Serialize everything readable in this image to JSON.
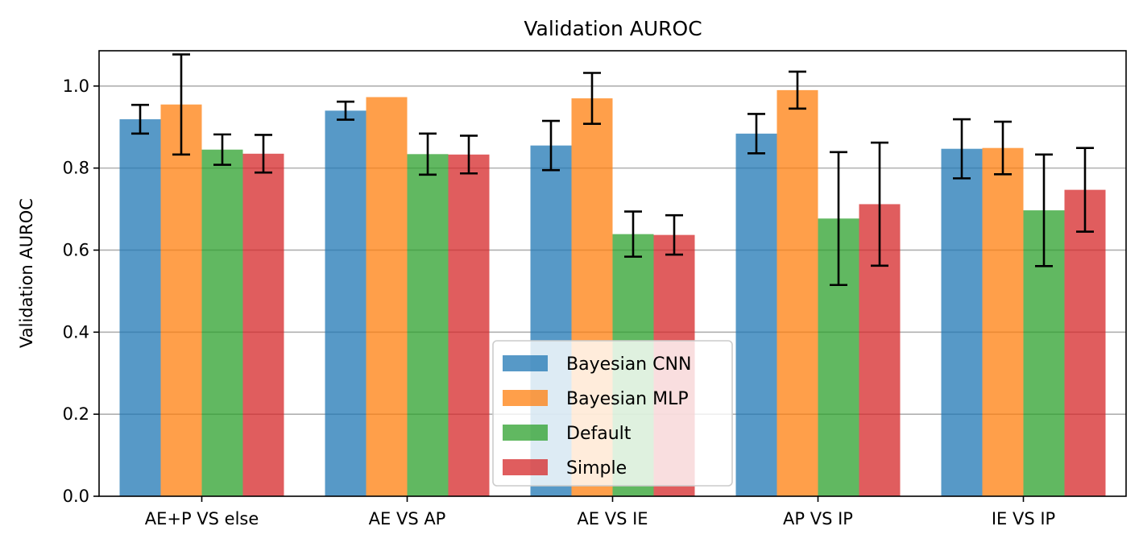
{
  "chart_data": {
    "type": "bar",
    "title": "Validation AUROC",
    "xlabel": "",
    "ylabel": "Validation AUROC",
    "ylim": [
      0,
      1.086
    ],
    "yticks": [
      "0.0",
      "0.2",
      "0.4",
      "0.6",
      "0.8",
      "1.0"
    ],
    "grid": "horizontal",
    "legend_position": "lower center",
    "categories": [
      "AE+P VS else",
      "AE VS AP",
      "AE VS IE",
      "AP VS IP",
      "IE VS IP"
    ],
    "series": [
      {
        "name": "Bayesian CNN",
        "color": "#1f77b4",
        "values": [
          0.919,
          0.94,
          0.855,
          0.884,
          0.847
        ],
        "errors": [
          0.035,
          0.022,
          0.06,
          0.048,
          0.072
        ]
      },
      {
        "name": "Bayesian MLP",
        "color": "#ff7f0e",
        "values": [
          0.955,
          0.973,
          0.97,
          0.99,
          0.849
        ],
        "errors": [
          0.122,
          0.0,
          0.062,
          0.045,
          0.064
        ]
      },
      {
        "name": "Default",
        "color": "#2ca02c",
        "values": [
          0.845,
          0.834,
          0.639,
          0.677,
          0.697
        ],
        "errors": [
          0.037,
          0.05,
          0.055,
          0.162,
          0.136
        ]
      },
      {
        "name": "Simple",
        "color": "#d62728",
        "values": [
          0.835,
          0.833,
          0.637,
          0.712,
          0.747
        ],
        "errors": [
          0.046,
          0.046,
          0.048,
          0.15,
          0.102
        ]
      }
    ]
  }
}
